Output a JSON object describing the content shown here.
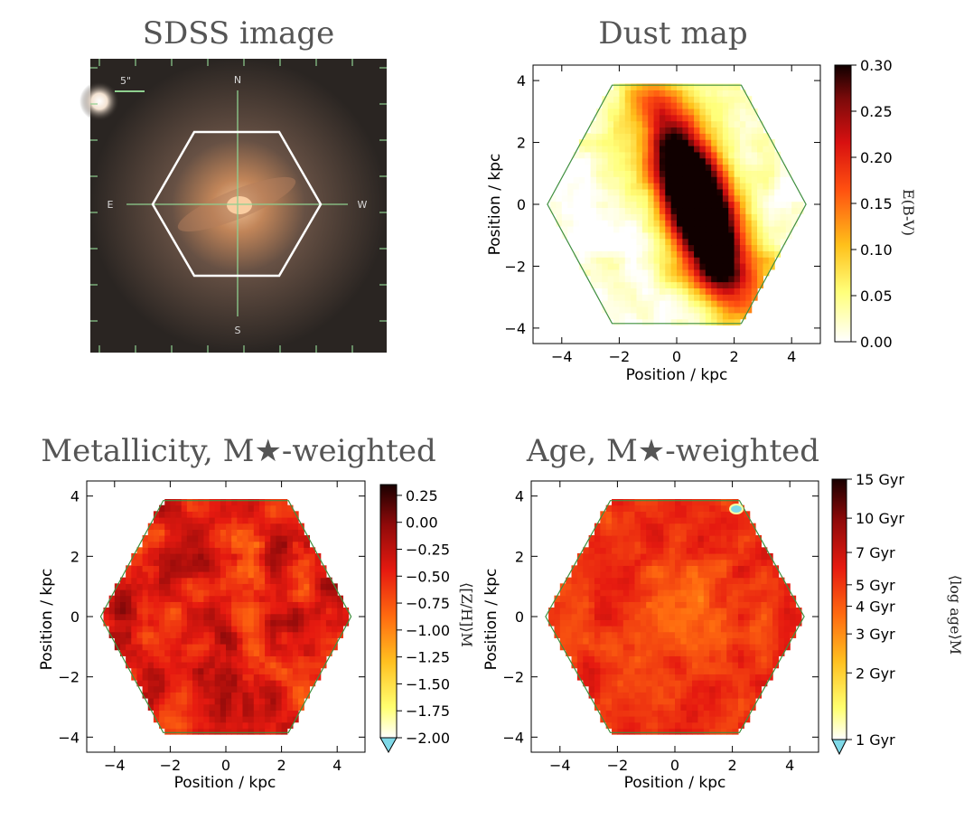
{
  "panels": {
    "sdss": {
      "title": "SDSS image",
      "compass": {
        "n": "N",
        "s": "S",
        "e": "E",
        "w": "W"
      },
      "scale_label": "5\""
    },
    "dust": {
      "title": "Dust map",
      "xlabel": "Position / kpc",
      "ylabel": "Position / kpc",
      "colorbar": {
        "label": "E(B-V)",
        "ticks": [
          "0.30",
          "0.25",
          "0.20",
          "0.15",
          "0.10",
          "0.05",
          "0.00"
        ]
      }
    },
    "metal": {
      "title": "Metallicity, M★-weighted",
      "xlabel": "Position / kpc",
      "ylabel": "Position / kpc",
      "colorbar": {
        "label": "⟨[Z/H]⟩M",
        "ticks": [
          "0.25",
          "0.00",
          "−0.25",
          "−0.50",
          "−0.75",
          "−1.00",
          "−1.25",
          "−1.50",
          "−1.75",
          "−2.00"
        ]
      }
    },
    "age": {
      "title": "Age, M★-weighted",
      "xlabel": "Position / kpc",
      "ylabel": "Position / kpc",
      "colorbar": {
        "label": "⟨log age⟩M",
        "ticks": [
          "15 Gyr",
          "10 Gyr",
          "7 Gyr",
          "5 Gyr",
          "4 Gyr",
          "3 Gyr",
          "2 Gyr",
          "1 Gyr"
        ]
      }
    }
  },
  "chart_data": [
    {
      "type": "heatmap",
      "title": "Dust map",
      "xlabel": "Position / kpc",
      "ylabel": "Position / kpc",
      "xlim": [
        -5,
        5
      ],
      "ylim": [
        -4.5,
        4.5
      ],
      "xticks": [
        -4,
        -2,
        0,
        2,
        4
      ],
      "yticks": [
        -4,
        -2,
        0,
        2,
        4
      ],
      "colorbar_label": "E(B-V)",
      "colorbar_range": [
        0.0,
        0.3
      ],
      "colorbar_ticks": [
        0.0,
        0.05,
        0.1,
        0.15,
        0.2,
        0.25,
        0.3
      ],
      "feature": "high-extinction dust lane (E(B-V) ~ 0.3) elongated NW-SE through centre at about x = 0.8 kpc"
    },
    {
      "type": "heatmap",
      "title": "Metallicity, M★-weighted",
      "xlabel": "Position / kpc",
      "ylabel": "Position / kpc",
      "xlim": [
        -5,
        5
      ],
      "ylim": [
        -4.5,
        4.5
      ],
      "xticks": [
        -4,
        -2,
        0,
        2,
        4
      ],
      "yticks": [
        -4,
        -2,
        0,
        2,
        4
      ],
      "colorbar_label": "⟨[Z/H]⟩M",
      "colorbar_range": [
        -2.0,
        0.35
      ],
      "colorbar_ticks": [
        -2.0,
        -1.75,
        -1.5,
        -1.25,
        -1.0,
        -0.75,
        -0.5,
        -0.25,
        0.0,
        0.25
      ]
    },
    {
      "type": "heatmap",
      "title": "Age, M★-weighted",
      "xlabel": "Position / kpc",
      "ylabel": "Position / kpc",
      "xlim": [
        -5,
        5
      ],
      "ylim": [
        -4.5,
        4.5
      ],
      "xticks": [
        -4,
        -2,
        0,
        2,
        4
      ],
      "yticks": [
        -4,
        -2,
        0,
        2,
        4
      ],
      "colorbar_label": "⟨log age⟩M",
      "colorbar_range_gyr": [
        1,
        15
      ],
      "colorbar_ticks_gyr": [
        1,
        2,
        3,
        4,
        5,
        7,
        10,
        15
      ]
    }
  ],
  "colors": {
    "hex_outline": "#3f8f3f",
    "title_gray": "#555555",
    "sdss_hex": "#ffffff",
    "sdss_crosshair": "#8fcf8f",
    "cb_under": "#7fd9e8"
  },
  "axis_ticks": {
    "x": [
      "−4",
      "−2",
      "0",
      "2",
      "4"
    ],
    "y": [
      "4",
      "2",
      "0",
      "−2",
      "−4"
    ]
  }
}
